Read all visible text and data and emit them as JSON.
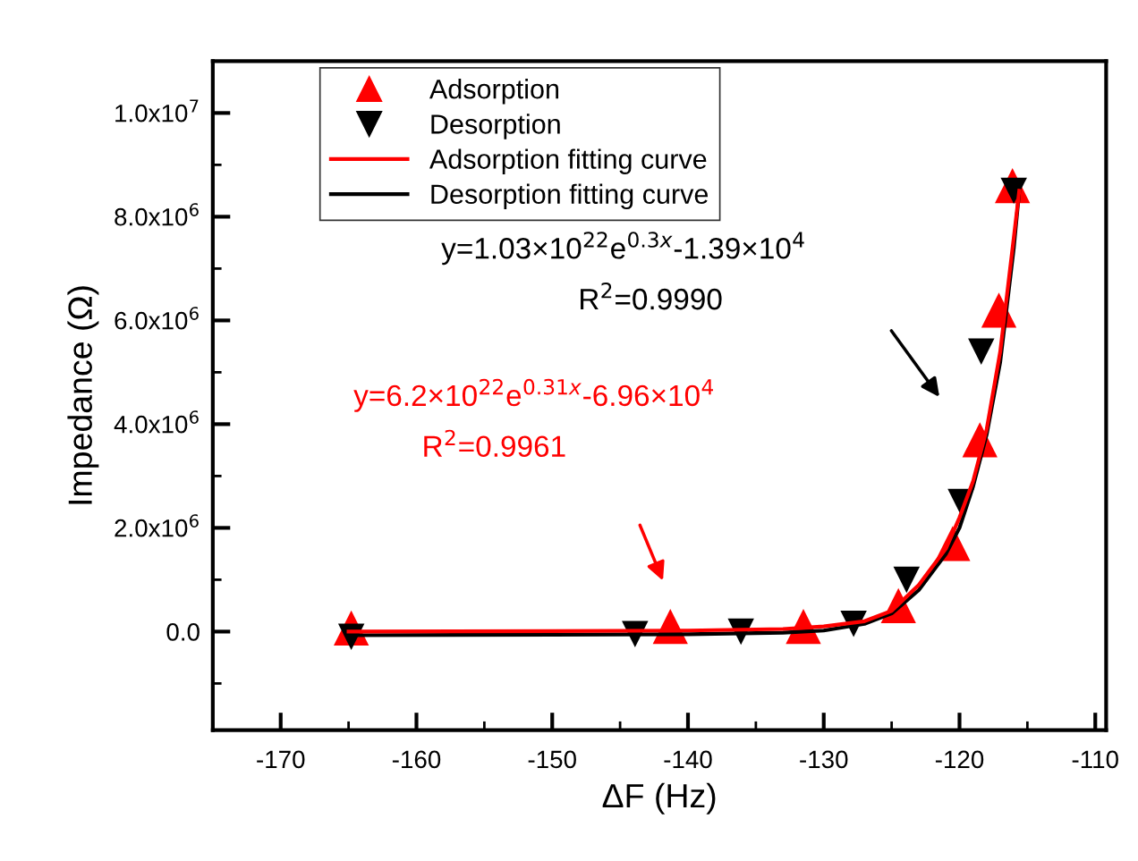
{
  "chart_data": {
    "type": "scatter",
    "xlabel": "ΔF (Hz)",
    "ylabel": "Impedance (Ω)",
    "xlim": [
      -175,
      -109.2
    ],
    "ylim": [
      -1900000,
      11000000
    ],
    "xticks": [
      -170,
      -160,
      -150,
      -140,
      -130,
      -120,
      -110
    ],
    "yticks": [
      {
        "value": 0,
        "label": "0.0"
      },
      {
        "value": 2000000,
        "label": "2.0x10$^{6}$"
      },
      {
        "value": 4000000,
        "label": "4.0x10$^{6}$"
      },
      {
        "value": 6000000,
        "label": "6.0x10$^{6}$"
      },
      {
        "value": 8000000,
        "label": "8.0x10$^{6}$"
      },
      {
        "value": 10000000,
        "label": "1.0x10$^{7}$"
      }
    ],
    "legend": "top left",
    "grid": false,
    "series": [
      {
        "name": "Adsorption",
        "marker": "triangle",
        "color": "#ff0000",
        "x": [
          -164.8,
          -141.3,
          -131.5,
          -124.5,
          -120.5,
          -118.5,
          -117.1,
          -116.1
        ],
        "values": [
          70000,
          100000,
          100000,
          500000,
          1700000,
          3700000,
          6200000,
          8600000
        ]
      },
      {
        "name": "Desorption",
        "marker": "triangle_down",
        "color": "#000000",
        "x": [
          -164.8,
          -143.9,
          -136.1,
          -127.8,
          -123.9,
          -119.9,
          -118.4,
          -116.0
        ],
        "values": [
          -100000,
          -50000,
          0,
          150000,
          1000000,
          2500000,
          5400000,
          8500000
        ]
      },
      {
        "name": "Adsorption fitting curve",
        "type": "line",
        "color": "#ff0000",
        "x": [
          -165,
          -150,
          -140,
          -133,
          -130,
          -127,
          -125,
          -123,
          -121,
          -120,
          -119,
          -118,
          -117,
          -116,
          -115.6
        ],
        "values": [
          0,
          10000,
          20000,
          50000,
          100000,
          200000,
          400000,
          900000,
          1600000,
          2200000,
          2900000,
          3900000,
          5400000,
          7600000,
          8500000
        ]
      },
      {
        "name": "Desorption fitting curve",
        "type": "line",
        "color": "#000000",
        "x": [
          -165,
          -150,
          -140,
          -133,
          -130,
          -127,
          -125,
          -123,
          -121,
          -120,
          -119,
          -118,
          -117,
          -116,
          -115.6
        ],
        "values": [
          -70000,
          -60000,
          -50000,
          -20000,
          20000,
          150000,
          350000,
          800000,
          1500000,
          2000000,
          2800000,
          3800000,
          5200000,
          7400000,
          8500000
        ]
      }
    ],
    "annotations": [
      "y=1.03×10$^{22}$e$^{0.3x}$-1.39×10$^{4}$",
      "R$^{2}$=0.9990",
      "y=6.2×10$^{22}$e$^{0.31x}$-6.96×10$^{4}$",
      "R$^{2}$=0.9961"
    ]
  }
}
